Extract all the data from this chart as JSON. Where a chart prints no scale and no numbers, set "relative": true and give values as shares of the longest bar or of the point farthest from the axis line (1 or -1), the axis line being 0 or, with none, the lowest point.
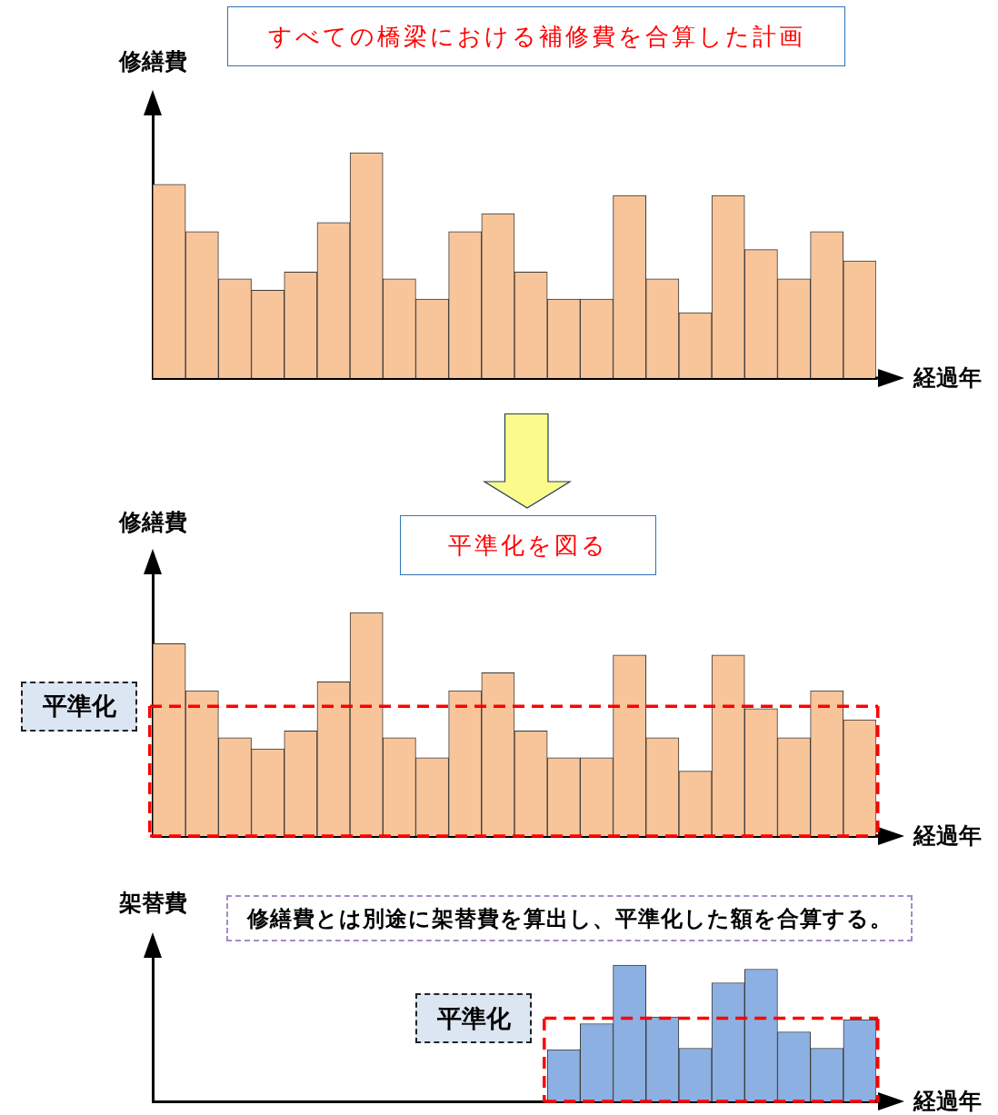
{
  "chart_data": [
    {
      "type": "bar",
      "title": "すべての橋梁における補修費を合算した計画",
      "ylabel": "修繕費",
      "xlabel": "経過年",
      "categories": [
        null,
        null,
        null,
        null,
        null,
        null,
        null,
        null,
        null,
        null,
        null,
        null,
        null,
        null,
        null,
        null,
        null,
        null,
        null,
        null,
        null,
        null
      ],
      "values": [
        0.86,
        0.65,
        0.44,
        0.39,
        0.47,
        0.69,
        1,
        0.44,
        0.35,
        0.65,
        0.73,
        0.47,
        0.35,
        0.35,
        0.81,
        0.44,
        0.29,
        0.81,
        0.57,
        0.44,
        0.65,
        0.52
      ],
      "color": "#f8c49a",
      "relative": true
    },
    {
      "type": "bar",
      "title": "平準化を図る",
      "ylabel": "修繕費",
      "xlabel": "経過年",
      "categories": [
        null,
        null,
        null,
        null,
        null,
        null,
        null,
        null,
        null,
        null,
        null,
        null,
        null,
        null,
        null,
        null,
        null,
        null,
        null,
        null,
        null,
        null
      ],
      "values": [
        0.86,
        0.65,
        0.44,
        0.39,
        0.47,
        0.69,
        1,
        0.44,
        0.35,
        0.65,
        0.73,
        0.47,
        0.35,
        0.35,
        0.81,
        0.44,
        0.29,
        0.81,
        0.57,
        0.44,
        0.65,
        0.52
      ],
      "color": "#f8c49a",
      "relative": true,
      "ref_lines": [
        {
          "axis": "y",
          "value": 0.58,
          "label": "平準化",
          "color": "#ff0000",
          "line_style": "dashed"
        },
        {
          "axis": "y",
          "value": 0,
          "color": "#ff0000",
          "line_style": "dashed"
        }
      ]
    },
    {
      "type": "bar",
      "ylabel": "架替費",
      "xlabel": "経過年",
      "annotations": [
        "修繕費とは別途に架替費を算出し、平準化した額を合算する。"
      ],
      "categories": [
        null,
        null,
        null,
        null,
        null,
        null,
        null,
        null,
        null,
        null,
        null,
        null,
        null,
        null,
        null,
        null,
        null,
        null,
        null,
        null,
        null,
        null
      ],
      "values": [
        null,
        null,
        null,
        null,
        null,
        null,
        null,
        null,
        null,
        null,
        null,
        null,
        0.38,
        0.57,
        1,
        0.62,
        0.39,
        0.87,
        0.97,
        0.51,
        0.39,
        0.6
      ],
      "color": "#8db0e3",
      "relative": true,
      "ref_lines": [
        {
          "axis": "y",
          "value": 0.61,
          "label": "平準化",
          "color": "#ff0000",
          "line_style": "dashed"
        },
        {
          "axis": "y",
          "value": 0,
          "color": "#ff0000",
          "line_style": "dashed"
        }
      ]
    }
  ]
}
